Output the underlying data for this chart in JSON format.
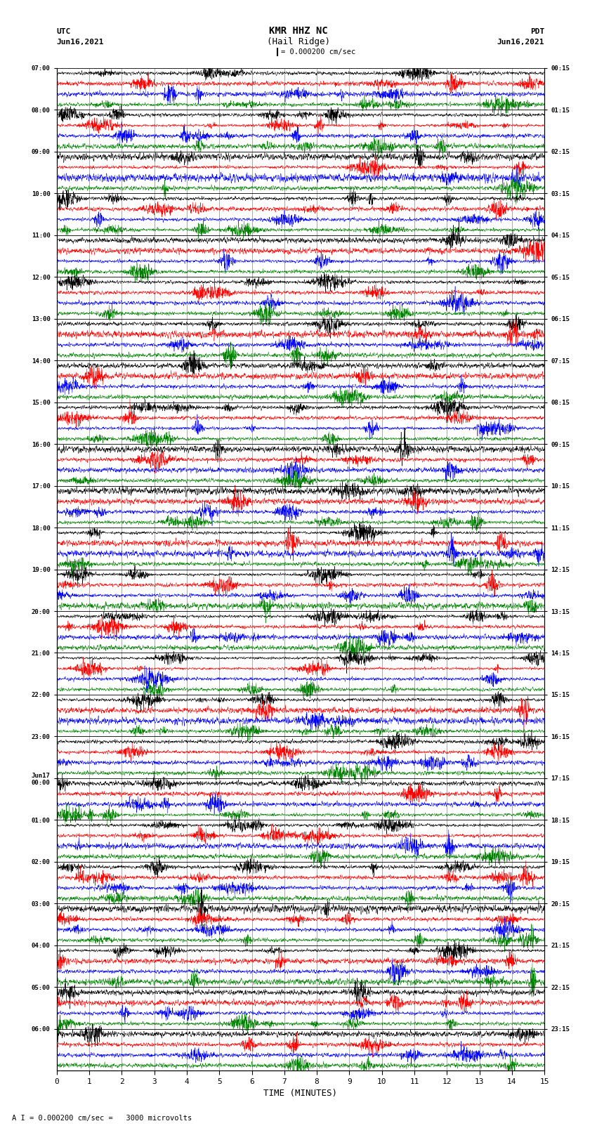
{
  "title_line1": "KMR HHZ NC",
  "title_line2": "(Hail Ridge)",
  "scale_label": "= 0.000200 cm/sec",
  "bottom_label": "A I = 0.000200 cm/sec =   3000 microvolts",
  "utc_label": "UTC",
  "utc_date": "Jun16,2021",
  "pdt_label": "PDT",
  "pdt_date": "Jun16,2021",
  "xlabel": "TIME (MINUTES)",
  "xlim": [
    0,
    15
  ],
  "xticks": [
    0,
    1,
    2,
    3,
    4,
    5,
    6,
    7,
    8,
    9,
    10,
    11,
    12,
    13,
    14,
    15
  ],
  "left_times": [
    "07:00",
    "08:00",
    "09:00",
    "10:00",
    "11:00",
    "12:00",
    "13:00",
    "14:00",
    "15:00",
    "16:00",
    "17:00",
    "18:00",
    "19:00",
    "20:00",
    "21:00",
    "22:00",
    "23:00",
    "Jun17\n00:00",
    "01:00",
    "02:00",
    "03:00",
    "04:00",
    "05:00",
    "06:00"
  ],
  "right_times": [
    "00:15",
    "01:15",
    "02:15",
    "03:15",
    "04:15",
    "05:15",
    "06:15",
    "07:15",
    "08:15",
    "09:15",
    "10:15",
    "11:15",
    "12:15",
    "13:15",
    "14:15",
    "15:15",
    "16:15",
    "17:15",
    "18:15",
    "19:15",
    "20:15",
    "21:15",
    "22:15",
    "23:15"
  ],
  "colors": [
    "black",
    "red",
    "blue",
    "green"
  ],
  "n_hours": 24,
  "traces_per_hour": 4,
  "bg_color": "white",
  "fig_width": 8.5,
  "fig_height": 16.13,
  "dpi": 100
}
